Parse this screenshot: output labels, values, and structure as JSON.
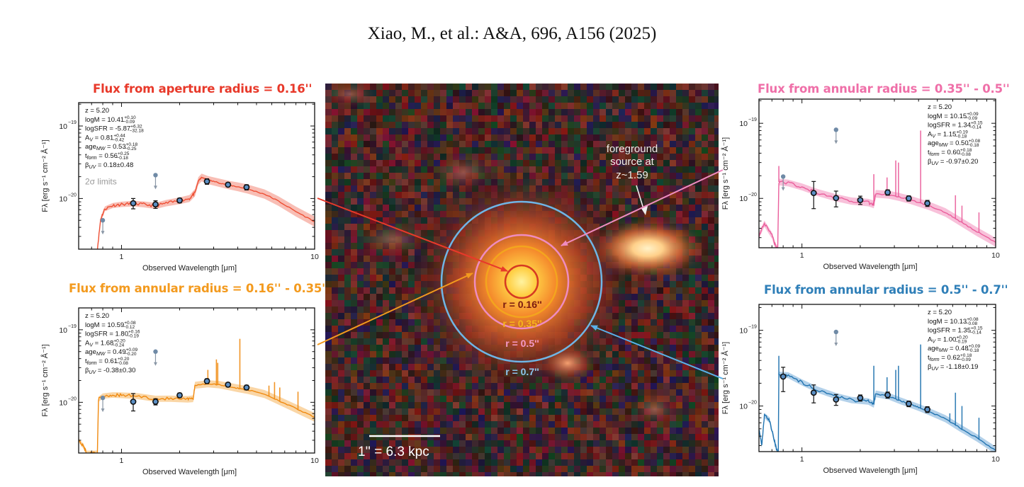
{
  "header": {
    "citation": "Xiao, M., et al.: A&A, 696, A156 (2025)"
  },
  "colors": {
    "aperture_016": "#e8392a",
    "annulus_016_035": "#f39a1e",
    "annulus_035_05": "#ef6fa8",
    "annulus_05_07": "#2f7fb8",
    "ring_07": "#6fb6e6",
    "photometry_fill": "#5b8fc4",
    "upper_limit": "#6f8aa6"
  },
  "image": {
    "scale_bar_label": "1'' = 6.3 kpc",
    "foreground_annotation": [
      "foreground",
      "source at",
      "z~1.59"
    ],
    "rings": [
      {
        "label": "r = 0.16''",
        "radius_arcsec": 0.16,
        "color_key": "aperture_016"
      },
      {
        "label": "r = 0.35''",
        "radius_arcsec": 0.35,
        "color_key": "annulus_016_035"
      },
      {
        "label": "r = 0.5''",
        "radius_arcsec": 0.5,
        "color_key": "annulus_035_05"
      },
      {
        "label": "r = 0.7''",
        "radius_arcsec": 0.7,
        "color_key": "ring_07"
      }
    ]
  },
  "chart_data": [
    {
      "id": "panel-aperture",
      "type": "line",
      "title": "Flux from aperture radius = 0.16''",
      "color_key": "aperture_016",
      "xlabel": "Observed Wavelength [μm]",
      "ylabel": "Fλ [erg s⁻¹ cm⁻² Å⁻¹]",
      "xscale": "log",
      "yscale": "log",
      "xlim": [
        0.6,
        10
      ],
      "ylim": [
        2e-21,
        2.1e-19
      ],
      "xticks": [
        {
          "v": 1,
          "label": "1"
        },
        {
          "v": 10,
          "label": "10"
        }
      ],
      "yticks": [
        {
          "v": 1e-19,
          "label": "10",
          "exp": "−19"
        },
        {
          "v": 1e-20,
          "label": "10",
          "exp": "−20"
        }
      ],
      "annotation_position": "top-left",
      "params": [
        {
          "name": "z",
          "value": "5.20"
        },
        {
          "name": "logM",
          "value": "10.41",
          "plus": "+0.10",
          "minus": "−0.09"
        },
        {
          "name": "logSFR",
          "value": "-5.87",
          "plus": "+6.32",
          "minus": "−32.18"
        },
        {
          "name": "A",
          "sub": "V",
          "value": "0.81",
          "plus": "+0.44",
          "minus": "−0.42"
        },
        {
          "name": "age",
          "sub": "MW",
          "value": "0.53",
          "plus": "+0.18",
          "minus": "−0.25"
        },
        {
          "name": "t",
          "sub": "form",
          "value": "0.56",
          "plus": "+0.25",
          "minus": "−0.18"
        },
        {
          "name": "β",
          "sub": "UV",
          "value": "0.18±0.48"
        }
      ],
      "extra_label": "2σ limits",
      "photometry": [
        {
          "x": 1.15,
          "y": 8.6e-21,
          "err_lo": 1.4e-21,
          "err_hi": 1.4e-21
        },
        {
          "x": 1.5,
          "y": 8.3e-21,
          "err_lo": 1e-21,
          "err_hi": 1e-21
        },
        {
          "x": 2.0,
          "y": 9.4e-21,
          "err_lo": 7e-22,
          "err_hi": 7e-22
        },
        {
          "x": 2.77,
          "y": 1.72e-20,
          "err_lo": 1.5e-21,
          "err_hi": 1.5e-21
        },
        {
          "x": 3.56,
          "y": 1.55e-20,
          "err_lo": 1e-21,
          "err_hi": 1e-21
        },
        {
          "x": 4.44,
          "y": 1.43e-20,
          "err_lo": 1.2e-21,
          "err_hi": 1.2e-21
        }
      ],
      "upper_limits": [
        {
          "x": 0.8,
          "y": 5e-21
        },
        {
          "x": 1.5,
          "y": 2.1e-20
        }
      ],
      "model": [
        [
          0.75,
          2e-21
        ],
        [
          0.78,
          5.2e-21
        ],
        [
          0.82,
          7.2e-21
        ],
        [
          0.9,
          8e-21
        ],
        [
          1.0,
          8.3e-21
        ],
        [
          1.15,
          8.5e-21
        ],
        [
          1.3,
          8.3e-21
        ],
        [
          1.5,
          7.9e-21
        ],
        [
          1.7,
          8.6e-21
        ],
        [
          2.0,
          9.3e-21
        ],
        [
          2.25,
          1e-20
        ],
        [
          2.4,
          1.2e-20
        ],
        [
          2.5,
          1.75e-20
        ],
        [
          2.6,
          1.95e-20
        ],
        [
          2.8,
          1.8e-20
        ],
        [
          3.2,
          1.65e-20
        ],
        [
          3.6,
          1.53e-20
        ],
        [
          4.0,
          1.45e-20
        ],
        [
          4.5,
          1.35e-20
        ],
        [
          5.5,
          1.15e-20
        ],
        [
          6.5,
          9.2e-21
        ],
        [
          8.0,
          6.6e-21
        ],
        [
          10.0,
          4.8e-21
        ]
      ],
      "band_halfwidth_dex": [
        0.03,
        0.07
      ]
    },
    {
      "id": "panel-annulus-016-035",
      "type": "line",
      "title": "Flux from annular radius = 0.16'' - 0.35''",
      "color_key": "annulus_016_035",
      "xlabel": "Observed Wavelength [μm]",
      "ylabel": "Fλ [erg s⁻¹ cm⁻² Å⁻¹]",
      "xscale": "log",
      "yscale": "log",
      "xlim": [
        0.6,
        10
      ],
      "ylim": [
        2e-21,
        2e-19
      ],
      "xticks": [
        {
          "v": 1,
          "label": "1"
        },
        {
          "v": 10,
          "label": "10"
        }
      ],
      "yticks": [
        {
          "v": 1e-19,
          "label": "10",
          "exp": "−19"
        },
        {
          "v": 1e-20,
          "label": "10",
          "exp": "−20"
        }
      ],
      "annotation_position": "top-left",
      "params": [
        {
          "name": "z",
          "value": "5.20"
        },
        {
          "name": "logM",
          "value": "10.59",
          "plus": "+0.08",
          "minus": "−0.12"
        },
        {
          "name": "logSFR",
          "value": "1.80",
          "plus": "+0.16",
          "minus": "−0.19"
        },
        {
          "name": "A",
          "sub": "V",
          "value": "1.68",
          "plus": "+0.20",
          "minus": "−0.24"
        },
        {
          "name": "age",
          "sub": "MW",
          "value": "0.49",
          "plus": "+0.09",
          "minus": "−0.20"
        },
        {
          "name": "t",
          "sub": "form",
          "value": "0.61",
          "plus": "+0.20",
          "minus": "−0.08"
        },
        {
          "name": "β",
          "sub": "UV",
          "value": "-0.38±0.30"
        }
      ],
      "photometry": [
        {
          "x": 1.15,
          "y": 1.02e-20,
          "err_lo": 2.6e-21,
          "err_hi": 3e-21
        },
        {
          "x": 1.5,
          "y": 1.02e-20,
          "err_lo": 1e-21,
          "err_hi": 1e-21
        },
        {
          "x": 2.0,
          "y": 1.25e-20,
          "err_lo": 9e-22,
          "err_hi": 9e-22
        },
        {
          "x": 2.77,
          "y": 1.96e-20,
          "err_lo": 1.5e-21,
          "err_hi": 1.5e-21
        },
        {
          "x": 3.56,
          "y": 1.75e-20,
          "err_lo": 1.2e-21,
          "err_hi": 1.2e-21
        },
        {
          "x": 4.44,
          "y": 1.6e-20,
          "err_lo": 1.2e-21,
          "err_hi": 1.2e-21
        }
      ],
      "upper_limits": [
        {
          "x": 0.8,
          "y": 1.15e-20
        },
        {
          "x": 1.5,
          "y": 5e-20
        }
      ],
      "model": [
        [
          0.6,
          3e-21
        ],
        [
          0.64,
          2.4e-21
        ],
        [
          0.66,
          2e-21
        ],
        [
          0.75,
          2e-21
        ],
        [
          0.76,
          1.1e-20
        ],
        [
          0.8,
          1.22e-20
        ],
        [
          0.9,
          1.26e-20
        ],
        [
          1.0,
          1.25e-20
        ],
        [
          1.2,
          1.22e-20
        ],
        [
          1.5,
          1.12e-20
        ],
        [
          1.8,
          1.12e-20
        ],
        [
          2.2,
          1.1e-20
        ],
        [
          2.35,
          1.12e-20
        ],
        [
          2.4,
          1.72e-20
        ],
        [
          2.8,
          1.8e-20
        ],
        [
          3.2,
          1.75e-20
        ],
        [
          3.6,
          1.65e-20
        ],
        [
          4.0,
          1.56e-20
        ],
        [
          4.5,
          1.48e-20
        ],
        [
          5.5,
          1.3e-20
        ],
        [
          6.5,
          1.06e-20
        ],
        [
          8.0,
          8.2e-21
        ],
        [
          10.0,
          6.2e-21
        ]
      ],
      "band_halfwidth_dex": [
        0.03,
        0.06
      ],
      "emission_lines": [
        [
          2.8,
          2.8e-20
        ],
        [
          3.1,
          3.9e-20
        ],
        [
          3.15,
          3.5e-20
        ],
        [
          4.1,
          7.5e-20
        ],
        [
          5.8,
          1.7e-20
        ],
        [
          6.2,
          1.9e-20
        ],
        [
          6.6,
          1.6e-20
        ],
        [
          8.2,
          1.4e-20
        ]
      ]
    },
    {
      "id": "panel-annulus-035-05",
      "type": "line",
      "title": "Flux from annular radius =  0.35'' - 0.5''",
      "color_key": "annulus_035_05",
      "xlabel": "Observed Wavelength [μm]",
      "ylabel": "Fλ [erg s⁻¹ cm⁻² Å⁻¹]",
      "xscale": "log",
      "yscale": "log",
      "xlim": [
        0.6,
        10
      ],
      "ylim": [
        2.2e-21,
        2.1e-19
      ],
      "xticks": [
        {
          "v": 1,
          "label": "1"
        },
        {
          "v": 10,
          "label": "10"
        }
      ],
      "yticks": [
        {
          "v": 1e-19,
          "label": "10",
          "exp": "−19"
        },
        {
          "v": 1e-20,
          "label": "10",
          "exp": "−20"
        }
      ],
      "annotation_position": "top-right",
      "params": [
        {
          "name": "z",
          "value": "5.20"
        },
        {
          "name": "logM",
          "value": "10.15",
          "plus": "+0.09",
          "minus": "−0.09"
        },
        {
          "name": "logSFR",
          "value": "1.34",
          "plus": "+0.15",
          "minus": "−0.14"
        },
        {
          "name": "A",
          "sub": "V",
          "value": "1.15",
          "plus": "+0.19",
          "minus": "−0.18"
        },
        {
          "name": "age",
          "sub": "MW",
          "value": "0.50",
          "plus": "+0.08",
          "minus": "−0.18"
        },
        {
          "name": "t",
          "sub": "form",
          "value": "0.60",
          "plus": "+0.18",
          "minus": "−0.08"
        },
        {
          "name": "β",
          "sub": "UV",
          "value": "-0.97±0.20"
        }
      ],
      "photometry": [
        {
          "x": 1.15,
          "y": 1.18e-20,
          "err_lo": 4.5e-21,
          "err_hi": 5e-21
        },
        {
          "x": 1.5,
          "y": 1.01e-20,
          "err_lo": 2.4e-21,
          "err_hi": 2.4e-21
        },
        {
          "x": 2.0,
          "y": 9.5e-21,
          "err_lo": 1.2e-21,
          "err_hi": 1.2e-21
        },
        {
          "x": 2.77,
          "y": 1.2e-20,
          "err_lo": 1e-21,
          "err_hi": 1e-21
        },
        {
          "x": 3.56,
          "y": 1e-20,
          "err_lo": 8e-22,
          "err_hi": 8e-22
        },
        {
          "x": 4.44,
          "y": 8.6e-21,
          "err_lo": 8e-22,
          "err_hi": 8e-22
        }
      ],
      "upper_limits": [
        {
          "x": 0.8,
          "y": 1.95e-20
        },
        {
          "x": 1.5,
          "y": 8.2e-20
        }
      ],
      "model": [
        [
          0.6,
          3.2e-21
        ],
        [
          0.64,
          4.6e-21
        ],
        [
          0.7,
          3.2e-21
        ],
        [
          0.735,
          2.2e-21
        ],
        [
          0.75,
          2.2e-21
        ],
        [
          0.76,
          1.65e-20
        ],
        [
          0.85,
          1.6e-20
        ],
        [
          1.0,
          1.42e-20
        ],
        [
          1.2,
          1.2e-20
        ],
        [
          1.5,
          1.02e-20
        ],
        [
          1.8,
          9.2e-21
        ],
        [
          2.2,
          8.8e-21
        ],
        [
          2.35,
          8.3e-21
        ],
        [
          2.4,
          1.15e-20
        ],
        [
          2.8,
          1.12e-20
        ],
        [
          3.2,
          1.04e-20
        ],
        [
          3.6,
          9.6e-21
        ],
        [
          4.0,
          8.8e-21
        ],
        [
          4.5,
          8e-21
        ],
        [
          5.5,
          6.5e-21
        ],
        [
          6.5,
          5e-21
        ],
        [
          8.0,
          3.6e-21
        ],
        [
          10.0,
          2.6e-21
        ]
      ],
      "band_halfwidth_dex": [
        0.04,
        0.06
      ],
      "emission_lines": [
        [
          0.76,
          2.7e-20
        ],
        [
          2.35,
          2.1e-20
        ],
        [
          2.75,
          1.9e-20
        ],
        [
          3.05,
          3.2e-20
        ],
        [
          3.15,
          3e-20
        ],
        [
          4.1,
          8e-20
        ],
        [
          5.8,
          6e-21
        ],
        [
          6.2,
          1.1e-20
        ],
        [
          6.7,
          8e-21
        ],
        [
          8.2,
          6.5e-21
        ]
      ]
    },
    {
      "id": "panel-annulus-05-07",
      "type": "line",
      "title": "Flux from annular radius =  0.5'' - 0.7''",
      "color_key": "annulus_05_07",
      "xlabel": "Observed Wavelength [μm]",
      "ylabel": "Fλ [erg s⁻¹ cm⁻² Å⁻¹]",
      "xscale": "log",
      "yscale": "log",
      "xlim": [
        0.6,
        10
      ],
      "ylim": [
        2.5e-21,
        2.2e-19
      ],
      "xticks": [
        {
          "v": 1,
          "label": "1"
        },
        {
          "v": 10,
          "label": "10"
        }
      ],
      "yticks": [
        {
          "v": 1e-19,
          "label": "10",
          "exp": "−19"
        },
        {
          "v": 1e-20,
          "label": "10",
          "exp": "−20"
        }
      ],
      "annotation_position": "top-right",
      "params": [
        {
          "name": "z",
          "value": "5.20"
        },
        {
          "name": "logM",
          "value": "10.13",
          "plus": "+0.08",
          "minus": "−0.08"
        },
        {
          "name": "logSFR",
          "value": "1.35",
          "plus": "+0.15",
          "minus": "−0.14"
        },
        {
          "name": "A",
          "sub": "V",
          "value": "1.00",
          "plus": "+0.20",
          "minus": "−0.19"
        },
        {
          "name": "age",
          "sub": "MW",
          "value": "0.48",
          "plus": "+0.09",
          "minus": "−0.18"
        },
        {
          "name": "t",
          "sub": "form",
          "value": "0.62",
          "plus": "+0.18",
          "minus": "−0.09"
        },
        {
          "name": "β",
          "sub": "UV",
          "value": "-1.18±0.19"
        }
      ],
      "photometry": [
        {
          "x": 0.8,
          "y": 2.45e-20,
          "err_lo": 9e-21,
          "err_hi": 8e-21
        },
        {
          "x": 1.15,
          "y": 1.5e-20,
          "err_lo": 4e-21,
          "err_hi": 4e-21
        },
        {
          "x": 1.5,
          "y": 1.22e-20,
          "err_lo": 2e-21,
          "err_hi": 2e-21
        },
        {
          "x": 2.0,
          "y": 1.28e-20,
          "err_lo": 1.2e-21,
          "err_hi": 1.2e-21
        },
        {
          "x": 2.77,
          "y": 1.4e-20,
          "err_lo": 1.3e-21,
          "err_hi": 1.3e-21
        },
        {
          "x": 3.56,
          "y": 1.07e-20,
          "err_lo": 9e-22,
          "err_hi": 9e-22
        },
        {
          "x": 4.44,
          "y": 9e-21,
          "err_lo": 8e-22,
          "err_hi": 8e-22
        }
      ],
      "upper_limits": [
        {
          "x": 1.5,
          "y": 9.5e-20
        }
      ],
      "model": [
        [
          0.6,
          5e-21
        ],
        [
          0.62,
          3e-21
        ],
        [
          0.64,
          7.5e-21
        ],
        [
          0.68,
          6.5e-21
        ],
        [
          0.72,
          3.5e-21
        ],
        [
          0.745,
          2.5e-21
        ],
        [
          0.755,
          2.5e-21
        ],
        [
          0.76,
          2.6e-20
        ],
        [
          0.85,
          2.55e-20
        ],
        [
          1.0,
          2.05e-20
        ],
        [
          1.2,
          1.65e-20
        ],
        [
          1.5,
          1.35e-20
        ],
        [
          1.8,
          1.2e-20
        ],
        [
          2.2,
          1.15e-20
        ],
        [
          2.35,
          1.05e-20
        ],
        [
          2.4,
          1.45e-20
        ],
        [
          2.8,
          1.35e-20
        ],
        [
          3.2,
          1.18e-20
        ],
        [
          3.6,
          1.06e-20
        ],
        [
          4.0,
          9.6e-21
        ],
        [
          4.5,
          8.5e-21
        ],
        [
          5.5,
          6.8e-21
        ],
        [
          6.5,
          5.2e-21
        ],
        [
          8.0,
          3.8e-21
        ],
        [
          10.0,
          2.6e-21
        ]
      ],
      "band_halfwidth_dex": [
        0.035,
        0.05
      ],
      "emission_lines": [
        [
          0.76,
          4.6e-20
        ],
        [
          2.35,
          3.4e-20
        ],
        [
          2.75,
          2.4e-20
        ],
        [
          3.05,
          3e-20
        ],
        [
          3.15,
          3.4e-20
        ],
        [
          4.1,
          6.5e-20
        ],
        [
          5.8,
          8e-21
        ],
        [
          6.2,
          1.5e-20
        ],
        [
          6.7,
          1e-20
        ],
        [
          8.2,
          7e-21
        ]
      ]
    }
  ]
}
